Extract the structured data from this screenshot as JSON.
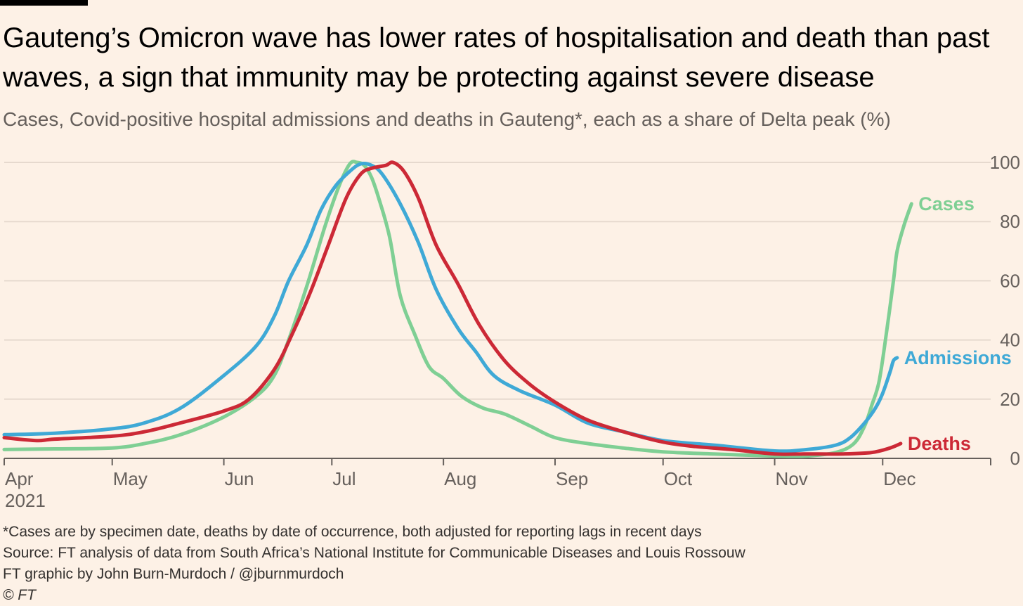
{
  "header": {
    "title": "Gauteng’s Omicron wave has lower rates of hospitalisation and death than past waves, a sign that immunity may be protecting against severe disease",
    "subtitle": "Cases, Covid-positive hospital admissions and deaths in Gauteng*, each as a share of Delta peak (%)"
  },
  "footer": {
    "note": "*Cases are by specimen date, deaths by date of occurrence, both adjusted for reporting lags in recent days",
    "source": "Source: FT analysis of data from South Africa’s National Institute for Communicable Diseases and Louis Rossouw",
    "credit": "FT graphic by John Burn-Murdoch / @jburnmurdoch",
    "copyright": "© FT"
  },
  "colors": {
    "background": "#fdf1e6",
    "gridline": "#e6d9ce",
    "axis": "#66605c",
    "cases": "#7fcf94",
    "admissions": "#3fa9d6",
    "deaths": "#cc2936"
  },
  "chart_data": {
    "type": "line",
    "x_unit": "date",
    "xlim": [
      "2021-04-01",
      "2021-12-31"
    ],
    "ylim": [
      0,
      100
    ],
    "y_ticks": [
      0,
      20,
      40,
      60,
      80,
      100
    ],
    "y_axis_side": "right",
    "grid": true,
    "legend": "end-of-line labels",
    "x_ticks": [
      {
        "date": "2021-04-01",
        "label": "Apr",
        "year": "2021"
      },
      {
        "date": "2021-05-01",
        "label": "May"
      },
      {
        "date": "2021-06-01",
        "label": "Jun"
      },
      {
        "date": "2021-07-01",
        "label": "Jul"
      },
      {
        "date": "2021-08-01",
        "label": "Aug"
      },
      {
        "date": "2021-09-01",
        "label": "Sep"
      },
      {
        "date": "2021-10-01",
        "label": "Oct"
      },
      {
        "date": "2021-11-01",
        "label": "Nov"
      },
      {
        "date": "2021-12-01",
        "label": "Dec"
      },
      {
        "date": "2021-12-31",
        "label": ""
      }
    ],
    "series": [
      {
        "name": "Cases",
        "color_key": "cases",
        "points": [
          [
            "2021-04-01",
            3
          ],
          [
            "2021-04-15",
            3.2
          ],
          [
            "2021-05-01",
            3.5
          ],
          [
            "2021-05-10",
            5
          ],
          [
            "2021-05-20",
            8
          ],
          [
            "2021-06-01",
            14
          ],
          [
            "2021-06-10",
            21
          ],
          [
            "2021-06-15",
            28
          ],
          [
            "2021-06-19",
            40
          ],
          [
            "2021-06-24",
            58
          ],
          [
            "2021-06-29",
            78
          ],
          [
            "2021-07-03",
            92
          ],
          [
            "2021-07-06",
            99.5
          ],
          [
            "2021-07-08",
            100
          ],
          [
            "2021-07-10",
            99
          ],
          [
            "2021-07-12",
            95
          ],
          [
            "2021-07-14",
            88
          ],
          [
            "2021-07-17",
            75
          ],
          [
            "2021-07-20",
            55
          ],
          [
            "2021-07-24",
            42
          ],
          [
            "2021-07-28",
            31
          ],
          [
            "2021-08-01",
            27
          ],
          [
            "2021-08-06",
            21
          ],
          [
            "2021-08-12",
            17
          ],
          [
            "2021-08-18",
            15
          ],
          [
            "2021-08-25",
            11
          ],
          [
            "2021-09-01",
            7
          ],
          [
            "2021-09-10",
            5
          ],
          [
            "2021-09-20",
            3.5
          ],
          [
            "2021-10-01",
            2.2
          ],
          [
            "2021-10-15",
            1.5
          ],
          [
            "2021-11-01",
            0.8
          ],
          [
            "2021-11-10",
            0.8
          ],
          [
            "2021-11-18",
            2
          ],
          [
            "2021-11-23",
            5
          ],
          [
            "2021-11-26",
            11
          ],
          [
            "2021-11-28",
            18
          ],
          [
            "2021-11-30",
            26
          ],
          [
            "2021-12-02",
            42
          ],
          [
            "2021-12-04",
            60
          ],
          [
            "2021-12-05",
            70
          ],
          [
            "2021-12-07",
            79
          ],
          [
            "2021-12-09",
            86
          ]
        ],
        "end_label": "Cases"
      },
      {
        "name": "Admissions",
        "color_key": "admissions",
        "points": [
          [
            "2021-04-01",
            8
          ],
          [
            "2021-04-15",
            8.5
          ],
          [
            "2021-05-01",
            10
          ],
          [
            "2021-05-10",
            12
          ],
          [
            "2021-05-20",
            17
          ],
          [
            "2021-06-01",
            28
          ],
          [
            "2021-06-10",
            38
          ],
          [
            "2021-06-15",
            48
          ],
          [
            "2021-06-19",
            60
          ],
          [
            "2021-06-24",
            72
          ],
          [
            "2021-06-28",
            84
          ],
          [
            "2021-07-02",
            92
          ],
          [
            "2021-07-06",
            97
          ],
          [
            "2021-07-09",
            99.5
          ],
          [
            "2021-07-12",
            99
          ],
          [
            "2021-07-15",
            96
          ],
          [
            "2021-07-20",
            86
          ],
          [
            "2021-07-25",
            73
          ],
          [
            "2021-07-30",
            57
          ],
          [
            "2021-08-05",
            44
          ],
          [
            "2021-08-10",
            36
          ],
          [
            "2021-08-15",
            28
          ],
          [
            "2021-08-22",
            23
          ],
          [
            "2021-09-01",
            18
          ],
          [
            "2021-09-10",
            12
          ],
          [
            "2021-09-20",
            9
          ],
          [
            "2021-10-01",
            6
          ],
          [
            "2021-10-15",
            4.5
          ],
          [
            "2021-11-01",
            2.5
          ],
          [
            "2021-11-10",
            3
          ],
          [
            "2021-11-18",
            4.5
          ],
          [
            "2021-11-22",
            7
          ],
          [
            "2021-11-26",
            12
          ],
          [
            "2021-11-29",
            17
          ],
          [
            "2021-12-01",
            22
          ],
          [
            "2021-12-03",
            29
          ],
          [
            "2021-12-04",
            33
          ],
          [
            "2021-12-05",
            34
          ]
        ],
        "end_label": "Admissions"
      },
      {
        "name": "Deaths",
        "color_key": "deaths",
        "points": [
          [
            "2021-04-01",
            7
          ],
          [
            "2021-04-10",
            6
          ],
          [
            "2021-04-15",
            6.5
          ],
          [
            "2021-05-01",
            7.5
          ],
          [
            "2021-05-10",
            9
          ],
          [
            "2021-05-20",
            12
          ],
          [
            "2021-06-01",
            16
          ],
          [
            "2021-06-08",
            20
          ],
          [
            "2021-06-15",
            30
          ],
          [
            "2021-06-20",
            42
          ],
          [
            "2021-06-25",
            56
          ],
          [
            "2021-06-30",
            72
          ],
          [
            "2021-07-05",
            88
          ],
          [
            "2021-07-09",
            96
          ],
          [
            "2021-07-12",
            98
          ],
          [
            "2021-07-16",
            99
          ],
          [
            "2021-07-18",
            100
          ],
          [
            "2021-07-21",
            97
          ],
          [
            "2021-07-25",
            88
          ],
          [
            "2021-07-30",
            72
          ],
          [
            "2021-08-05",
            59
          ],
          [
            "2021-08-11",
            45
          ],
          [
            "2021-08-18",
            33
          ],
          [
            "2021-08-25",
            25
          ],
          [
            "2021-09-01",
            19
          ],
          [
            "2021-09-10",
            13
          ],
          [
            "2021-09-20",
            9
          ],
          [
            "2021-10-01",
            5.5
          ],
          [
            "2021-10-10",
            4
          ],
          [
            "2021-10-20",
            3
          ],
          [
            "2021-11-01",
            1.5
          ],
          [
            "2021-11-10",
            1.5
          ],
          [
            "2021-11-20",
            1.5
          ],
          [
            "2021-11-28",
            2
          ],
          [
            "2021-12-03",
            3.5
          ],
          [
            "2021-12-06",
            5
          ]
        ],
        "end_label": "Deaths"
      }
    ]
  }
}
